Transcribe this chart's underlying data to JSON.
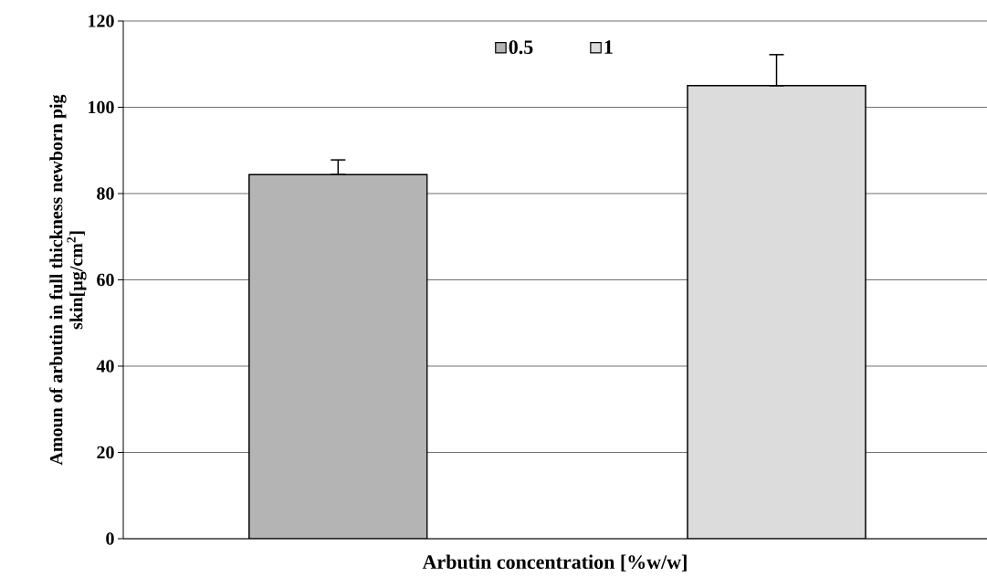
{
  "chart_data": {
    "type": "bar",
    "categories": [
      null,
      null
    ],
    "xlabel": "Arbutin concentration [%w/w]",
    "ylabel": "Amoun of arbutin in full thickness newborn pig skin[µg/cm$^{2}$]",
    "series": [
      {
        "name": "0.5",
        "color": "#b4b4b4",
        "values": [
          84.4,
          null
        ],
        "errors": [
          [
            84.4,
            87.8
          ],
          null
        ]
      },
      {
        "name": "1",
        "color": "#dcdcdc",
        "values": [
          null,
          105.0
        ],
        "errors": [
          null,
          [
            105.0,
            112.2
          ]
        ]
      }
    ],
    "ylim": [
      0,
      120
    ],
    "yticks": [
      0,
      20,
      40,
      60,
      80,
      100,
      120
    ],
    "grid": "y",
    "legend": "top"
  }
}
